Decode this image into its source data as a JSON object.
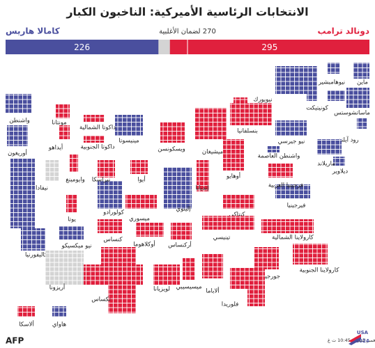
{
  "header": {
    "title": "الانتخابات الرئاسية الأميركية: الناخبون الكبار"
  },
  "bar": {
    "trump": {
      "name": "دونالد ترامب",
      "votes": 295
    },
    "harris": {
      "name": "كامالا هاريس",
      "votes": 226
    },
    "majority": "270 لضمان الأغلبية"
  },
  "states": [
    {
      "label": "ماين",
      "winner": "dem"
    },
    {
      "label": "نيوهامبشير",
      "winner": "dem"
    },
    {
      "label": "فيرمونت",
      "winner": "dem"
    },
    {
      "label": "ماساتشوستس",
      "winner": "dem"
    },
    {
      "label": "كونيتيكت",
      "winner": "dem"
    },
    {
      "label": "رود آيلند",
      "winner": "dem"
    },
    {
      "label": "نيويورك",
      "winner": "dem"
    },
    {
      "label": "بنسلفانيا",
      "winner": "rep"
    },
    {
      "label": "نيو جيرسي",
      "winner": "dem"
    },
    {
      "label": "ديلاوير",
      "winner": "dem"
    },
    {
      "label": "ماريلاند",
      "winner": "dem"
    },
    {
      "label": "واشنطن العاصمة",
      "winner": "dem"
    },
    {
      "label": "فيرجينيا",
      "winner": "dem"
    },
    {
      "label": "فرجينيا الغربية",
      "winner": "rep"
    },
    {
      "label": "أوهايو",
      "winner": "rep"
    },
    {
      "label": "ميشيغان",
      "winner": "rep"
    },
    {
      "label": "إنديانا",
      "winner": "rep"
    },
    {
      "label": "كنتاكي",
      "winner": "rep"
    },
    {
      "label": "تينيسي",
      "winner": "rep"
    },
    {
      "label": "كارولاينا الشمالية",
      "winner": "rep"
    },
    {
      "label": "كارولاينا الجنوبية",
      "winner": "rep"
    },
    {
      "label": "جورجيا",
      "winner": "rep"
    },
    {
      "label": "فلوريدا",
      "winner": "rep"
    },
    {
      "label": "ألاباما",
      "winner": "rep"
    },
    {
      "label": "ميسيسيبي",
      "winner": "rep"
    },
    {
      "label": "لويزيانا",
      "winner": "rep"
    },
    {
      "label": "أركنساس",
      "winner": "rep"
    },
    {
      "label": "إلينوي",
      "winner": "dem"
    },
    {
      "label": "ويسكونسن",
      "winner": "rep"
    },
    {
      "label": "مينيسوتا",
      "winner": "dem"
    },
    {
      "label": "أيوا",
      "winner": "rep"
    },
    {
      "label": "ميسوري",
      "winner": "rep"
    },
    {
      "label": "أوكلاهوما",
      "winner": "rep"
    },
    {
      "label": "كولورادو",
      "winner": "dem"
    },
    {
      "label": "كنساس",
      "winner": "rep"
    },
    {
      "label": "نبراسكا",
      "winner": "rep"
    },
    {
      "label": "داكوتا الجنوبية",
      "winner": "rep"
    },
    {
      "label": "داكوتا الشمالية",
      "winner": "rep"
    },
    {
      "label": "مونتانا",
      "winner": "rep"
    },
    {
      "label": "وايومينغ",
      "winner": "rep"
    },
    {
      "label": "أيداهو",
      "winner": "rep"
    },
    {
      "label": "واشنطن",
      "winner": "dem"
    },
    {
      "label": "أوريغون",
      "winner": "dem"
    },
    {
      "label": "نيفادا",
      "winner": "pending"
    },
    {
      "label": "يوتا",
      "winner": "rep"
    },
    {
      "label": "كاليفورنيا",
      "winner": "dem"
    },
    {
      "label": "نيو ميكسيكو",
      "winner": "dem"
    },
    {
      "label": "أريزونا",
      "winner": "pending"
    },
    {
      "label": "تكساس",
      "winner": "rep"
    },
    {
      "label": "ألاسكا",
      "winner": "rep"
    },
    {
      "label": "هاواي",
      "winner": "dem"
    }
  ],
  "footer": {
    "source": "المصدر: وسائل إعلام أميركية - النتائج الجزئية لغاية 7 نوفمبر الساعة 10:45 ت غ",
    "agency": "AFP",
    "badge_top": "USA",
    "badge_bottom": "2024"
  }
}
